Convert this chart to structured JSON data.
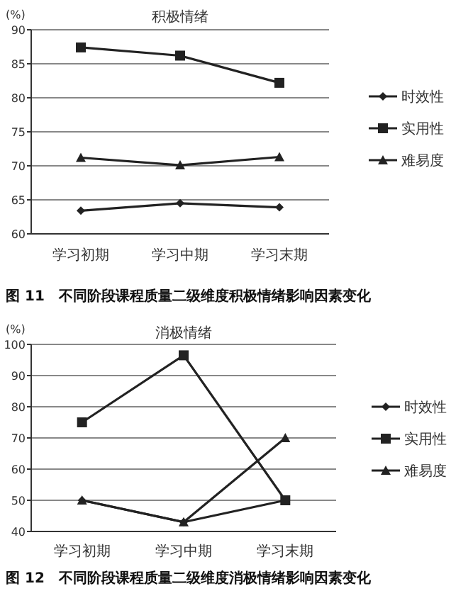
{
  "chart_data": [
    {
      "type": "line",
      "title": "积极情绪",
      "ylabel": "(%)",
      "categories": [
        "学习初期",
        "学习中期",
        "学习末期"
      ],
      "series": [
        {
          "name": "时效性",
          "color": "#222222",
          "marker": "diamond",
          "values": [
            63.4,
            64.5,
            63.9
          ]
        },
        {
          "name": "实用性",
          "color": "#222222",
          "marker": "square",
          "values": [
            87.4,
            86.2,
            82.2
          ]
        },
        {
          "name": "难易度",
          "color": "#222222",
          "marker": "triangle",
          "values": [
            71.2,
            70.1,
            71.3
          ]
        }
      ],
      "ylim": [
        60,
        90
      ],
      "yticks": [
        60,
        65,
        70,
        75,
        80,
        85,
        90
      ],
      "grid": "y",
      "legend": "right",
      "annotations": [
        "图 11　不同阶段课程质量二级维度积极情绪影响因素变化"
      ]
    },
    {
      "type": "line",
      "title": "消极情绪",
      "ylabel": "(%)",
      "categories": [
        "学习初期",
        "学习中期",
        "学习末期"
      ],
      "series": [
        {
          "name": "时效性",
          "color": "#222222",
          "marker": "diamond",
          "values": [
            50,
            43,
            50
          ]
        },
        {
          "name": "实用性",
          "color": "#222222",
          "marker": "square",
          "values": [
            75,
            96.5,
            50
          ]
        },
        {
          "name": "难易度",
          "color": "#222222",
          "marker": "triangle",
          "values": [
            50,
            43,
            70
          ]
        }
      ],
      "ylim": [
        40,
        100
      ],
      "yticks": [
        40,
        50,
        60,
        70,
        80,
        90,
        100
      ],
      "grid": "y",
      "legend": "right",
      "annotations": [
        "图 12　不同阶段课程质量二级维度消极情绪影响因素变化"
      ]
    }
  ]
}
